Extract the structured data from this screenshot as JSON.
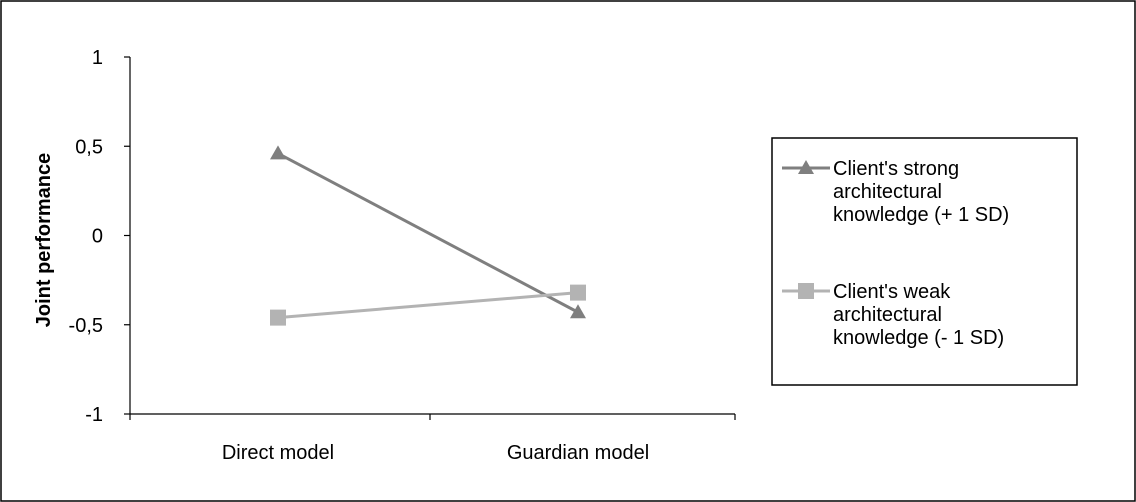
{
  "chart_data": {
    "type": "line",
    "categories": [
      "Direct model",
      "Guardian model"
    ],
    "ylabel": "Joint performance",
    "xlabel": "",
    "title": "",
    "ylim": [
      -1,
      1
    ],
    "yticks": [
      {
        "value": 1,
        "label": "1"
      },
      {
        "value": 0.5,
        "label": "0,5"
      },
      {
        "value": 0,
        "label": "0"
      },
      {
        "value": -0.5,
        "label": "-0,5"
      },
      {
        "value": -1,
        "label": "-1"
      }
    ],
    "grid": false,
    "legend_position": "right",
    "series": [
      {
        "name_lines": [
          "Client's strong",
          "architectural",
          "knowledge (+ 1 SD)"
        ],
        "values": [
          0.46,
          -0.43
        ],
        "marker": "triangle",
        "color": "#7f7f7f"
      },
      {
        "name_lines": [
          "Client's weak",
          "architectural",
          "knowledge (- 1 SD)"
        ],
        "values": [
          -0.46,
          -0.32
        ],
        "marker": "square",
        "color": "#b3b3b3"
      }
    ]
  }
}
